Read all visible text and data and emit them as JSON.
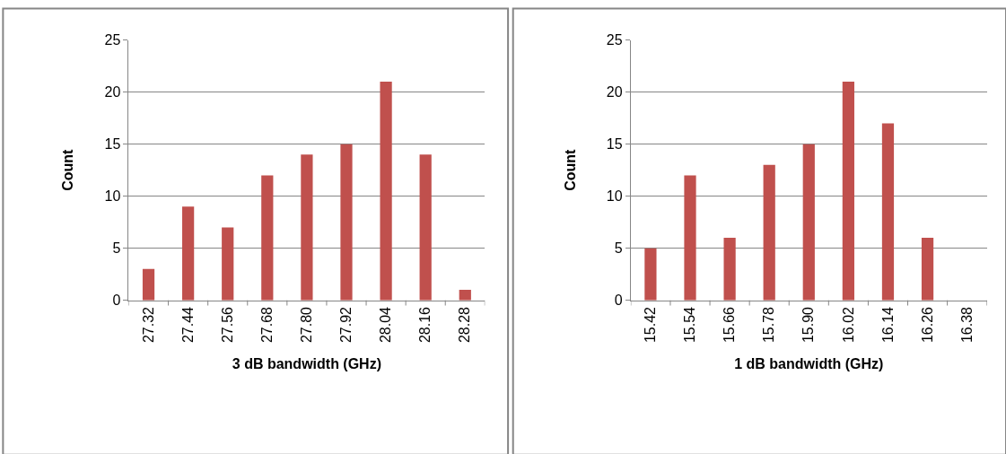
{
  "chart_data": [
    {
      "type": "bar",
      "xlabel": "3 dB bandwidth (GHz)",
      "ylabel": "Count",
      "categories": [
        "27.32",
        "27.44",
        "27.56",
        "27.68",
        "27.80",
        "27.92",
        "28.04",
        "28.16",
        "28.28"
      ],
      "values": [
        3,
        9,
        7,
        12,
        14,
        15,
        21,
        14,
        1
      ],
      "color": "#c0504d",
      "ylim": [
        0,
        25
      ],
      "yticks": [
        0,
        5,
        10,
        15,
        20,
        25
      ],
      "grid": "y"
    },
    {
      "type": "bar",
      "xlabel": "1 dB bandwidth (GHz)",
      "ylabel": "Count",
      "categories": [
        "15.42",
        "15.54",
        "15.66",
        "15.78",
        "15.90",
        "16.02",
        "16.14",
        "16.26",
        "16.38"
      ],
      "values": [
        5,
        12,
        6,
        13,
        15,
        21,
        17,
        6,
        0
      ],
      "color": "#c0504d",
      "ylim": [
        0,
        25
      ],
      "yticks": [
        0,
        5,
        10,
        15,
        20,
        25
      ],
      "grid": "y"
    }
  ]
}
